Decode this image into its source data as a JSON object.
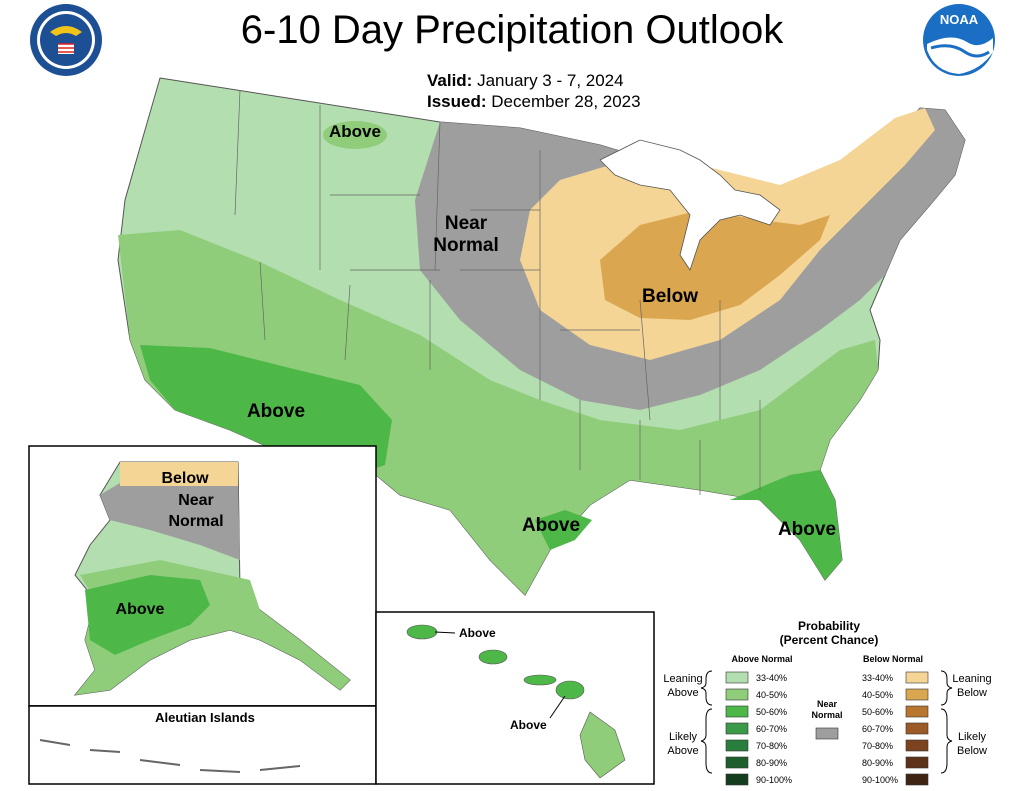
{
  "title": "6-10 Day Precipitation Outlook",
  "valid": {
    "label": "Valid:",
    "value": "January 3 - 7, 2024"
  },
  "issued": {
    "label": "Issued:",
    "value": "December 28, 2023"
  },
  "logos": {
    "noaa_text": "NOAA"
  },
  "map_labels": {
    "conus_above_north": "Above",
    "conus_near": "Near",
    "conus_normal": "Normal",
    "conus_below": "Below",
    "conus_above_sw": "Above",
    "conus_above_tx": "Above",
    "conus_above_fl": "Above",
    "ak_below": "Below",
    "ak_near": "Near",
    "ak_normal": "Normal",
    "ak_above": "Above",
    "aleutian": "Aleutian Islands",
    "hi_above_1": "Above",
    "hi_above_2": "Above"
  },
  "legend": {
    "title_1": "Probability",
    "title_2": "(Percent Chance)",
    "above_header": "Above Normal",
    "below_header": "Below Normal",
    "near_1": "Near",
    "near_2": "Normal",
    "leaning_above_1": "Leaning",
    "leaning_above_2": "Above",
    "likely_above_1": "Likely",
    "likely_above_2": "Above",
    "leaning_below_1": "Leaning",
    "leaning_below_2": "Below",
    "likely_below_1": "Likely",
    "likely_below_2": "Below",
    "above_bins": [
      {
        "label": "33-40%",
        "color": "#b3deaf"
      },
      {
        "label": "40-50%",
        "color": "#8fcd7b"
      },
      {
        "label": "50-60%",
        "color": "#4db848"
      },
      {
        "label": "60-70%",
        "color": "#3a9a48"
      },
      {
        "label": "70-80%",
        "color": "#2a7e3d"
      },
      {
        "label": "80-90%",
        "color": "#1f5f2e"
      },
      {
        "label": "90-100%",
        "color": "#143d1e"
      }
    ],
    "below_bins": [
      {
        "label": "33-40%",
        "color": "#f4d596"
      },
      {
        "label": "40-50%",
        "color": "#dba650"
      },
      {
        "label": "50-60%",
        "color": "#b9762f"
      },
      {
        "label": "60-70%",
        "color": "#9b5a26"
      },
      {
        "label": "70-80%",
        "color": "#7d431e"
      },
      {
        "label": "80-90%",
        "color": "#5e3218"
      },
      {
        "label": "90-100%",
        "color": "#3f2412"
      }
    ],
    "near_color": "#9e9e9e"
  },
  "colors": {
    "above_33_40": "#b3deaf",
    "above_40_50": "#8fcd7b",
    "above_50_60": "#4db848",
    "below_33_40": "#f4d596",
    "below_40_50": "#dba650",
    "near_normal": "#9e9e9e",
    "noaa_blue": "#1a6fc4",
    "doc_blue": "#1d4f94"
  }
}
